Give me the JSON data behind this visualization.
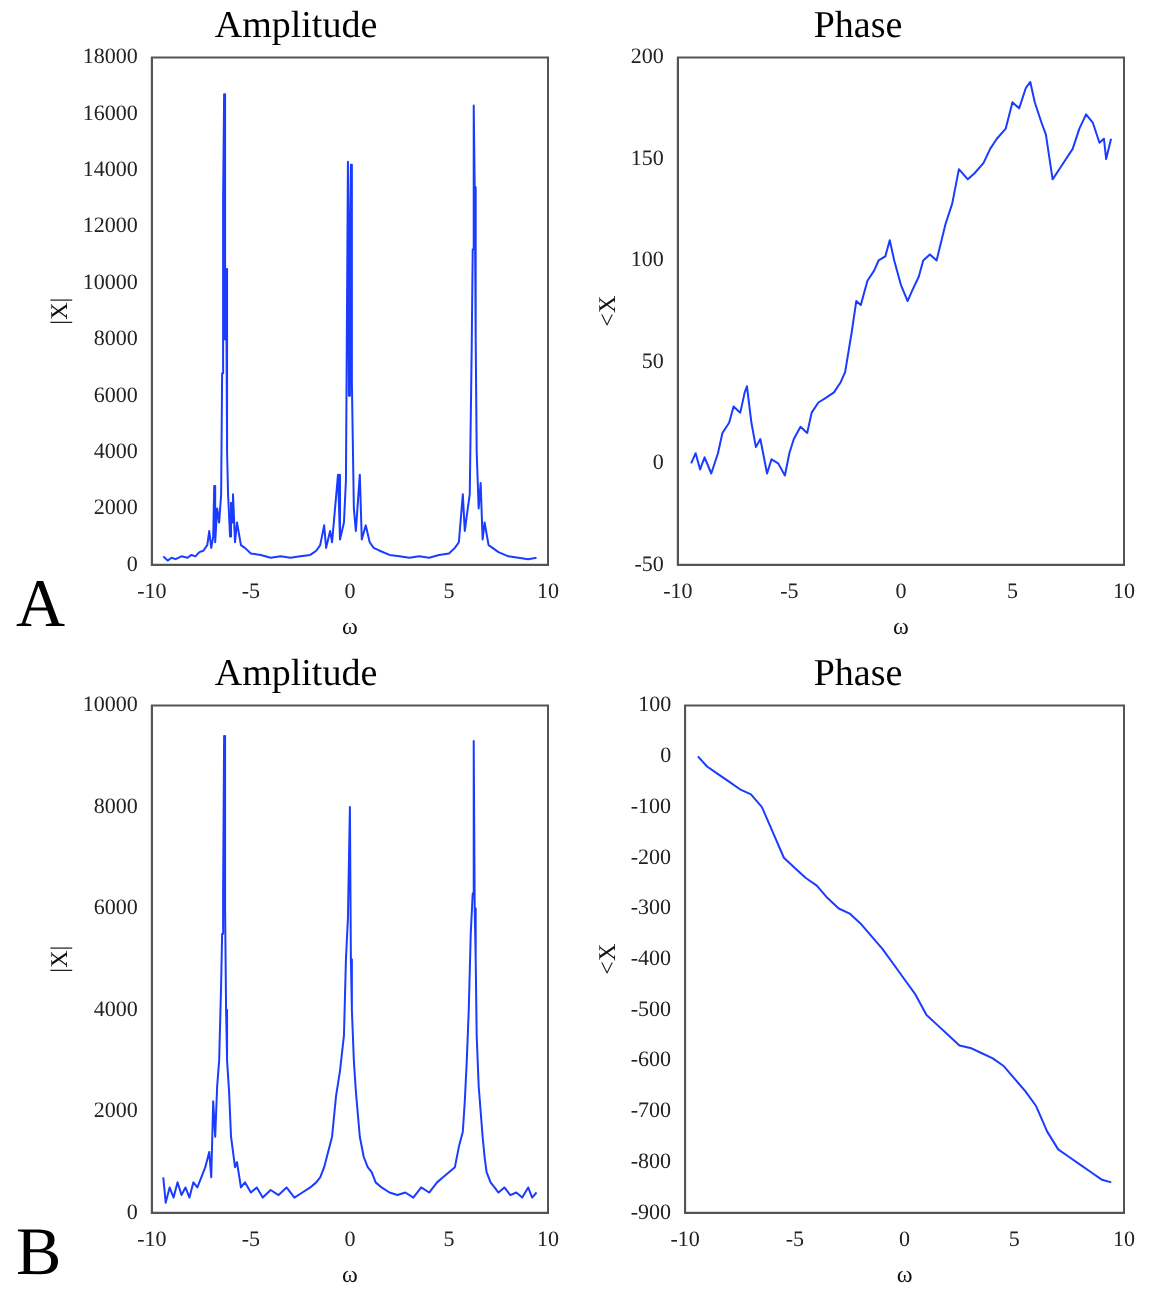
{
  "chart_data": [
    {
      "type": "line",
      "title": "Amplitude",
      "xlabel": "ω",
      "ylabel": "|X|",
      "color": "#1a3cff",
      "annotations": [
        "A"
      ],
      "xlim": [
        -10,
        10
      ],
      "xticks": [
        -10,
        -5,
        0,
        5,
        10
      ],
      "ylim": [
        0,
        18000
      ],
      "yticks": [
        0,
        2000,
        4000,
        6000,
        8000,
        10000,
        12000,
        14000,
        16000,
        18000
      ],
      "x": [
        -9.42,
        -9.2,
        -9.0,
        -8.8,
        -8.5,
        -8.2,
        -8.0,
        -7.8,
        -7.6,
        -7.4,
        -7.2,
        -7.1,
        -7.0,
        -6.9,
        -6.85,
        -6.8,
        -6.7,
        -6.6,
        -6.5,
        -6.45,
        -6.4,
        -6.35,
        -6.3,
        -6.25,
        -6.2,
        -6.15,
        -6.05,
        -6.0,
        -5.95,
        -5.9,
        -5.8,
        -5.7,
        -5.5,
        -5.3,
        -5.0,
        -4.5,
        -4.0,
        -3.5,
        -3.0,
        -2.5,
        -2.0,
        -1.7,
        -1.5,
        -1.3,
        -1.2,
        -1.0,
        -0.9,
        -0.6,
        -0.5,
        -0.3,
        -0.2,
        -0.1,
        -0.05,
        0.0,
        0.05,
        0.1,
        0.2,
        0.3,
        0.5,
        0.6,
        0.8,
        1.0,
        1.2,
        1.5,
        2.0,
        2.5,
        3.0,
        3.5,
        4.0,
        4.5,
        5.0,
        5.3,
        5.5,
        5.7,
        5.8,
        5.95,
        6.05,
        6.15,
        6.2,
        6.25,
        6.3,
        6.35,
        6.4,
        6.5,
        6.6,
        6.7,
        6.8,
        7.0,
        7.2,
        7.5,
        8.0,
        8.5,
        9.0,
        9.42
      ],
      "values": [
        300,
        150,
        250,
        200,
        300,
        250,
        350,
        300,
        450,
        500,
        700,
        1200,
        600,
        1000,
        2800,
        800,
        2000,
        1500,
        2500,
        6800,
        13000,
        16700,
        8000,
        10500,
        4000,
        2500,
        1000,
        2200,
        1500,
        2500,
        800,
        1500,
        700,
        600,
        400,
        350,
        250,
        300,
        250,
        300,
        350,
        500,
        700,
        1400,
        600,
        1200,
        800,
        3200,
        900,
        1500,
        3000,
        14300,
        6000,
        11900,
        14200,
        6500,
        2000,
        1200,
        3200,
        900,
        1400,
        800,
        600,
        500,
        350,
        300,
        250,
        300,
        250,
        350,
        400,
        600,
        800,
        2500,
        1200,
        2000,
        2500,
        7800,
        11200,
        16300,
        13400,
        8000,
        4000,
        2000,
        2900,
        900,
        1500,
        700,
        600,
        450,
        300,
        250,
        200,
        250
      ]
    },
    {
      "type": "line",
      "title": "Phase",
      "xlabel": "ω",
      "ylabel": "<X",
      "color": "#1a3cff",
      "xlim": [
        -10,
        10
      ],
      "xticks": [
        -10,
        -5,
        0,
        5,
        10
      ],
      "ylim": [
        -50,
        200
      ],
      "yticks": [
        -50,
        0,
        50,
        100,
        150,
        200
      ],
      "x": [
        -9.4,
        -9.2,
        -9,
        -8.8,
        -8.5,
        -8.2,
        -8,
        -7.7,
        -7.5,
        -7.2,
        -7,
        -6.9,
        -6.7,
        -6.5,
        -6.3,
        -6,
        -5.8,
        -5.5,
        -5.2,
        -5,
        -4.8,
        -4.5,
        -4.2,
        -4,
        -3.7,
        -3.4,
        -3,
        -2.7,
        -2.5,
        -2.2,
        -2,
        -1.8,
        -1.5,
        -1.2,
        -1,
        -0.7,
        -0.5,
        -0.3,
        0,
        0.3,
        0.5,
        0.8,
        1,
        1.3,
        1.6,
        2,
        2.3,
        2.6,
        3,
        3.3,
        3.7,
        4,
        4.3,
        4.7,
        5,
        5.3,
        5.6,
        5.8,
        6,
        6.3,
        6.5,
        6.8,
        7.1,
        7.4,
        7.7,
        8,
        8.3,
        8.6,
        8.9,
        9.1,
        9.2,
        9.42
      ],
      "values": [
        0,
        5,
        -3,
        3,
        -5,
        5,
        15,
        20,
        28,
        25,
        35,
        38,
        20,
        8,
        12,
        -5,
        2,
        0,
        -6,
        5,
        12,
        18,
        15,
        25,
        30,
        32,
        35,
        40,
        45,
        65,
        80,
        78,
        90,
        95,
        100,
        102,
        110,
        100,
        88,
        80,
        85,
        92,
        100,
        103,
        100,
        118,
        128,
        145,
        140,
        143,
        148,
        155,
        160,
        165,
        178,
        175,
        185,
        188,
        178,
        168,
        162,
        140,
        145,
        150,
        155,
        165,
        172,
        168,
        158,
        160,
        150,
        160
      ]
    },
    {
      "type": "line",
      "title": "Amplitude",
      "xlabel": "ω",
      "ylabel": "|X|",
      "color": "#1a3cff",
      "annotations": [
        "B"
      ],
      "xlim": [
        -10,
        10
      ],
      "xticks": [
        -10,
        -5,
        0,
        5,
        10
      ],
      "ylim": [
        0,
        10000
      ],
      "yticks": [
        0,
        2000,
        4000,
        6000,
        8000,
        10000
      ],
      "x": [
        -9.42,
        -9.3,
        -9.1,
        -8.9,
        -8.7,
        -8.5,
        -8.3,
        -8.1,
        -7.9,
        -7.7,
        -7.5,
        -7.3,
        -7.1,
        -7.0,
        -6.9,
        -6.8,
        -6.7,
        -6.6,
        -6.5,
        -6.45,
        -6.4,
        -6.35,
        -6.3,
        -6.25,
        -6.2,
        -6.1,
        -6.0,
        -5.9,
        -5.8,
        -5.7,
        -5.5,
        -5.3,
        -5.0,
        -4.7,
        -4.4,
        -4.0,
        -3.6,
        -3.2,
        -2.8,
        -2.4,
        -2.0,
        -1.7,
        -1.5,
        -1.3,
        -1.1,
        -0.9,
        -0.7,
        -0.5,
        -0.3,
        -0.2,
        -0.1,
        0.0,
        0.05,
        0.1,
        0.2,
        0.3,
        0.5,
        0.7,
        0.9,
        1.1,
        1.3,
        1.6,
        2.0,
        2.4,
        2.8,
        3.2,
        3.6,
        4.0,
        4.4,
        4.7,
        5.0,
        5.3,
        5.5,
        5.7,
        5.8,
        5.9,
        6.0,
        6.1,
        6.2,
        6.25,
        6.3,
        6.35,
        6.4,
        6.5,
        6.6,
        6.7,
        6.8,
        6.9,
        7.1,
        7.3,
        7.5,
        7.8,
        8.1,
        8.4,
        8.7,
        9.0,
        9.2,
        9.42
      ],
      "values": [
        700,
        200,
        500,
        300,
        600,
        350,
        500,
        300,
        600,
        500,
        700,
        900,
        1200,
        700,
        2200,
        1500,
        2500,
        3000,
        4500,
        5500,
        6400,
        9400,
        6000,
        4000,
        3000,
        2400,
        1500,
        1200,
        900,
        1000,
        500,
        600,
        400,
        500,
        300,
        450,
        350,
        500,
        300,
        400,
        500,
        600,
        700,
        900,
        1200,
        1500,
        2300,
        2800,
        3500,
        5000,
        5800,
        8000,
        5000,
        4000,
        3000,
        2400,
        1500,
        1100,
        900,
        800,
        600,
        500,
        400,
        350,
        400,
        300,
        500,
        400,
        600,
        700,
        800,
        900,
        1300,
        1600,
        2200,
        3000,
        4000,
        5500,
        6300,
        9300,
        6000,
        5000,
        3500,
        2500,
        2000,
        1500,
        1100,
        800,
        600,
        500,
        400,
        500,
        350,
        400,
        300,
        500,
        300,
        400
      ]
    },
    {
      "type": "line",
      "title": "Phase",
      "xlabel": "ω",
      "ylabel": "<X",
      "color": "#1a3cff",
      "xlim": [
        -10,
        10
      ],
      "xticks": [
        -10,
        -5,
        0,
        5,
        10
      ],
      "ylim": [
        -900,
        100
      ],
      "yticks": [
        -900,
        -800,
        -700,
        -600,
        -500,
        -400,
        -300,
        -200,
        -100,
        0,
        100
      ],
      "x": [
        -9.42,
        -9,
        -8.5,
        -8,
        -7.5,
        -7,
        -6.5,
        -6,
        -5.5,
        -5,
        -4.5,
        -4,
        -3.5,
        -3,
        -2.5,
        -2,
        -1.5,
        -1,
        -0.5,
        0,
        0.5,
        1,
        1.5,
        2,
        2.5,
        3,
        3.5,
        4,
        4.5,
        5,
        5.5,
        6,
        6.5,
        7,
        7.5,
        8,
        8.5,
        9,
        9.42
      ],
      "values": [
        0,
        -20,
        -35,
        -50,
        -65,
        -75,
        -100,
        -150,
        -200,
        -220,
        -240,
        -255,
        -280,
        -300,
        -310,
        -330,
        -355,
        -380,
        -410,
        -440,
        -470,
        -510,
        -530,
        -550,
        -570,
        -575,
        -585,
        -595,
        -610,
        -635,
        -660,
        -690,
        -740,
        -775,
        -790,
        -805,
        -820,
        -835,
        -840
      ]
    }
  ]
}
